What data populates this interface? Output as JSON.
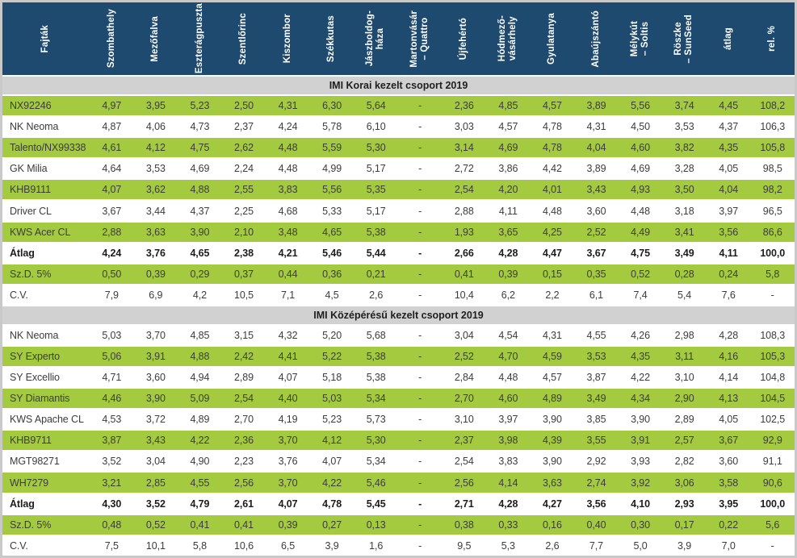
{
  "table": {
    "corner_label": "Fajták",
    "columns": [
      "Szombathely",
      "Mezőfalva",
      "Eszterágpuszta",
      "Szentlőrinc",
      "Kiszombor",
      "Székkutas",
      "Jászboldog-\nháza",
      "Martonvásár\n– Quattro",
      "Újfehértó",
      "Hódmező-\nvásárhely",
      "Gyulatanya",
      "Abaújszántó",
      "Mélykút\n– Soltis",
      "Röszke\n– SunSeed",
      "átlag",
      "rel. %"
    ],
    "colors": {
      "header_bg": "#1f4a70",
      "shaded_row_bg": "#a4cb3f",
      "section_bg": "#d1d1d1",
      "header_text": "#ffffff",
      "data_text": "#3c3c3c"
    },
    "sections": [
      {
        "title": "IMI Korai kezelt csoport 2019",
        "rows": [
          {
            "name": "NX92246",
            "shaded": true,
            "bold": false,
            "values": [
              "4,97",
              "3,95",
              "5,23",
              "2,50",
              "4,31",
              "6,30",
              "5,64",
              "-",
              "2,36",
              "4,85",
              "4,57",
              "3,89",
              "5,56",
              "3,74",
              "4,45",
              "108,2"
            ]
          },
          {
            "name": "NK Neoma",
            "shaded": false,
            "bold": false,
            "values": [
              "4,87",
              "4,06",
              "4,73",
              "2,37",
              "4,24",
              "5,78",
              "6,10",
              "-",
              "3,03",
              "4,57",
              "4,78",
              "4,31",
              "4,50",
              "3,53",
              "4,37",
              "106,3"
            ]
          },
          {
            "name": "Talento/NX99338",
            "shaded": true,
            "bold": false,
            "values": [
              "4,61",
              "4,12",
              "4,75",
              "2,62",
              "4,48",
              "5,59",
              "5,30",
              "-",
              "3,14",
              "4,69",
              "4,78",
              "4,04",
              "4,60",
              "3,82",
              "4,35",
              "105,8"
            ]
          },
          {
            "name": "GK Milia",
            "shaded": false,
            "bold": false,
            "values": [
              "4,64",
              "3,53",
              "4,69",
              "2,24",
              "4,48",
              "4,99",
              "5,17",
              "-",
              "2,72",
              "3,86",
              "4,42",
              "3,89",
              "4,69",
              "3,28",
              "4,05",
              "98,5"
            ]
          },
          {
            "name": "KHB9111",
            "shaded": true,
            "bold": false,
            "values": [
              "4,07",
              "3,62",
              "4,88",
              "2,55",
              "3,83",
              "5,56",
              "5,35",
              "-",
              "2,54",
              "4,20",
              "4,01",
              "3,43",
              "4,93",
              "3,50",
              "4,04",
              "98,2"
            ]
          },
          {
            "name": "Driver CL",
            "shaded": false,
            "bold": false,
            "values": [
              "3,67",
              "3,44",
              "4,37",
              "2,25",
              "4,68",
              "5,33",
              "5,17",
              "-",
              "2,88",
              "4,11",
              "4,48",
              "3,60",
              "4,48",
              "3,18",
              "3,97",
              "96,5"
            ]
          },
          {
            "name": "KWS Acer CL",
            "shaded": true,
            "bold": false,
            "values": [
              "2,88",
              "3,63",
              "3,90",
              "2,10",
              "3,48",
              "4,65",
              "5,38",
              "-",
              "1,93",
              "3,65",
              "4,25",
              "2,52",
              "4,49",
              "3,41",
              "3,56",
              "86,6"
            ]
          },
          {
            "name": "Átlag",
            "shaded": false,
            "bold": true,
            "values": [
              "4,24",
              "3,76",
              "4,65",
              "2,38",
              "4,21",
              "5,46",
              "5,44",
              "-",
              "2,66",
              "4,28",
              "4,47",
              "3,67",
              "4,75",
              "3,49",
              "4,11",
              "100,0"
            ]
          },
          {
            "name": "Sz.D. 5%",
            "shaded": true,
            "bold": false,
            "values": [
              "0,50",
              "0,39",
              "0,29",
              "0,37",
              "0,44",
              "0,36",
              "0,21",
              "-",
              "0,41",
              "0,39",
              "0,15",
              "0,35",
              "0,52",
              "0,28",
              "0,24",
              "5,8"
            ]
          },
          {
            "name": "C.V.",
            "shaded": false,
            "bold": false,
            "values": [
              "7,9",
              "6,9",
              "4,2",
              "10,5",
              "7,1",
              "4,5",
              "2,6",
              "-",
              "10,4",
              "6,2",
              "2,2",
              "6,1",
              "7,4",
              "5,4",
              "7,6",
              "-"
            ]
          }
        ]
      },
      {
        "title": "IMI Középérésű kezelt csoport 2019",
        "rows": [
          {
            "name": "NK Neoma",
            "shaded": false,
            "bold": false,
            "values": [
              "5,03",
              "3,70",
              "4,85",
              "3,15",
              "4,32",
              "5,20",
              "5,68",
              "-",
              "3,04",
              "4,54",
              "4,31",
              "4,55",
              "4,26",
              "2,98",
              "4,28",
              "108,3"
            ]
          },
          {
            "name": "SY Experto",
            "shaded": true,
            "bold": false,
            "values": [
              "5,06",
              "3,91",
              "4,88",
              "2,42",
              "4,41",
              "5,22",
              "5,38",
              "-",
              "2,52",
              "4,70",
              "4,59",
              "3,53",
              "4,35",
              "3,11",
              "4,16",
              "105,3"
            ]
          },
          {
            "name": "SY Excellio",
            "shaded": false,
            "bold": false,
            "values": [
              "4,71",
              "3,60",
              "4,94",
              "2,89",
              "4,07",
              "5,18",
              "5,38",
              "-",
              "2,84",
              "4,48",
              "4,57",
              "3,87",
              "4,22",
              "3,10",
              "4,14",
              "104,8"
            ]
          },
          {
            "name": "SY Diamantis",
            "shaded": true,
            "bold": false,
            "values": [
              "4,46",
              "3,90",
              "5,09",
              "2,54",
              "4,40",
              "5,03",
              "5,34",
              "-",
              "2,70",
              "4,60",
              "4,89",
              "3,49",
              "4,34",
              "2,90",
              "4,13",
              "104,5"
            ]
          },
          {
            "name": "KWS Apache CL",
            "shaded": false,
            "bold": false,
            "values": [
              "4,53",
              "3,72",
              "4,89",
              "2,70",
              "4,19",
              "5,23",
              "5,73",
              "-",
              "3,10",
              "3,97",
              "3,90",
              "3,85",
              "3,90",
              "2,89",
              "4,05",
              "102,5"
            ]
          },
          {
            "name": "KHB9711",
            "shaded": true,
            "bold": false,
            "values": [
              "3,87",
              "3,43",
              "4,22",
              "2,36",
              "3,70",
              "4,12",
              "5,30",
              "-",
              "2,37",
              "3,98",
              "4,39",
              "3,55",
              "3,91",
              "2,57",
              "3,67",
              "92,9"
            ]
          },
          {
            "name": "MGT98271",
            "shaded": false,
            "bold": false,
            "values": [
              "3,52",
              "3,04",
              "4,90",
              "2,23",
              "3,76",
              "4,07",
              "5,34",
              "-",
              "2,54",
              "3,83",
              "3,90",
              "2,92",
              "3,93",
              "2,82",
              "3,60",
              "91,1"
            ]
          },
          {
            "name": "WH7279",
            "shaded": true,
            "bold": false,
            "values": [
              "3,21",
              "2,85",
              "4,55",
              "2,56",
              "3,70",
              "4,22",
              "5,46",
              "-",
              "2,56",
              "4,14",
              "3,63",
              "2,74",
              "3,92",
              "3,06",
              "3,58",
              "90,6"
            ]
          },
          {
            "name": "Átlag",
            "shaded": false,
            "bold": true,
            "values": [
              "4,30",
              "3,52",
              "4,79",
              "2,61",
              "4,07",
              "4,78",
              "5,45",
              "-",
              "2,71",
              "4,28",
              "4,27",
              "3,56",
              "4,10",
              "2,93",
              "3,95",
              "100,0"
            ]
          },
          {
            "name": "Sz.D. 5%",
            "shaded": true,
            "bold": false,
            "values": [
              "0,48",
              "0,52",
              "0,41",
              "0,41",
              "0,39",
              "0,27",
              "0,13",
              "-",
              "0,38",
              "0,33",
              "0,16",
              "0,40",
              "0,30",
              "0,17",
              "0,22",
              "5,6"
            ]
          },
          {
            "name": "C.V.",
            "shaded": false,
            "bold": false,
            "values": [
              "7,5",
              "10,1",
              "5,8",
              "10,6",
              "6,5",
              "3,9",
              "1,6",
              "-",
              "9,5",
              "5,3",
              "2,6",
              "7,7",
              "5,0",
              "3,9",
              "7,0",
              "-"
            ]
          }
        ]
      }
    ]
  }
}
